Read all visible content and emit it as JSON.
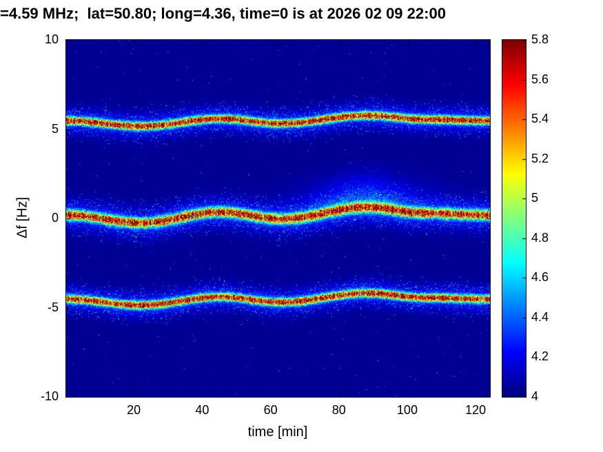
{
  "title": "=4.59 MHz;  lat=50.80; long=4.36, time=0 is at 2026 02 09 22:00",
  "axes": {
    "xlabel": "time [min]",
    "ylabel": "Δf [Hz]"
  },
  "chart_data": {
    "type": "heatmap",
    "title": "=4.59 MHz;  lat=50.80; long=4.36, time=0 is at 2026 02 09 22:00",
    "xlabel": "time [min]",
    "ylabel": "Δf [Hz]",
    "x_range": [
      0,
      124
    ],
    "y_range": [
      -10,
      10
    ],
    "x_ticks": {
      "values": [
        20,
        40,
        60,
        80,
        100,
        120
      ],
      "labels": [
        "20",
        "40",
        "60",
        "80",
        "100",
        "120"
      ]
    },
    "y_ticks": {
      "values": [
        10,
        5,
        0,
        -5,
        -10
      ],
      "labels": [
        "10",
        "5",
        "0",
        "-5",
        "-10"
      ]
    },
    "colormap": "jet",
    "color_range": [
      4,
      5.8
    ],
    "colorbar_ticks": {
      "values": [
        5.8,
        5.6,
        5.4,
        5.2,
        5,
        4.8,
        4.6,
        4.4,
        4.2,
        4
      ],
      "labels": [
        "5.8",
        "5.6",
        "5.4",
        "5.2",
        "5",
        "4.8",
        "4.6",
        "4.4",
        "4.2",
        "4"
      ]
    },
    "background_value": 4.03,
    "doppler_waveform": {
      "t_min": [
        0,
        22,
        45,
        63,
        88,
        105,
        124
      ],
      "delta_hz": [
        0.05,
        -0.35,
        0.2,
        -0.15,
        0.45,
        0.15,
        0.05
      ]
    },
    "bands": [
      {
        "name": "upper-sideband-trace",
        "center_hz": 5.45,
        "amp_scale": 0.75,
        "core_sigma_hz": 0.14,
        "halo_sigma_hz": 0.45,
        "peak_value": 5.8
      },
      {
        "name": "carrier-trace",
        "center_hz": 0.15,
        "amp_scale": 1.1,
        "core_sigma_hz": 0.18,
        "halo_sigma_hz": 0.55,
        "peak_value": 5.8,
        "plume": {
          "t_center": 87,
          "t_sigma": 13,
          "f_offset": 0.8,
          "f_sigma": 0.8,
          "strength": 0.45
        }
      },
      {
        "name": "lower-sideband-trace",
        "center_hz": -4.55,
        "amp_scale": 0.85,
        "core_sigma_hz": 0.14,
        "halo_sigma_hz": 0.45,
        "peak_value": 5.8
      }
    ]
  }
}
